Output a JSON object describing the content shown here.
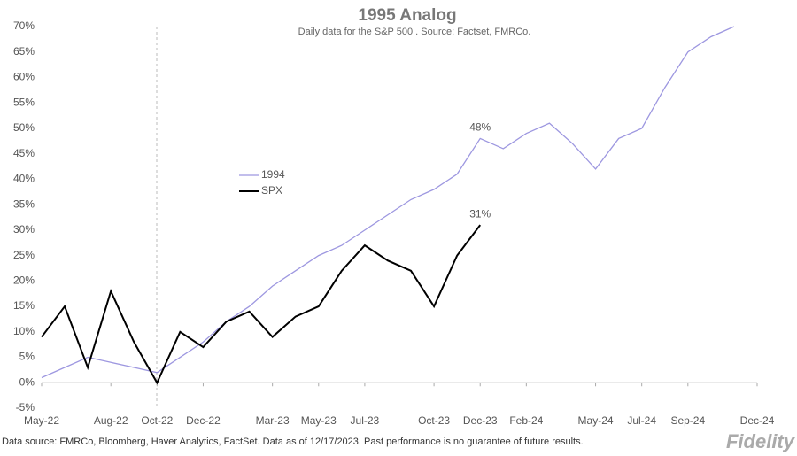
{
  "chart_data": {
    "type": "line",
    "title": "1995 Analog",
    "subtitle": "Daily data for the S&P 500 .  Source: Factset, FMRCo.",
    "footnote": "Data source: FMRCo, Bloomberg, Haver Analytics, FactSet. Data as of 12/17/2023. Past performance is no guarantee of future results.",
    "brand": "Fidelity",
    "x": [
      "2022-05",
      "2022-06",
      "2022-07",
      "2022-08",
      "2022-09",
      "2022-10",
      "2022-11",
      "2022-12",
      "2023-01",
      "2023-02",
      "2023-03",
      "2023-04",
      "2023-05",
      "2023-06",
      "2023-07",
      "2023-08",
      "2023-09",
      "2023-10",
      "2023-11",
      "2023-12",
      "2024-01",
      "2024-02",
      "2024-03",
      "2024-04",
      "2024-05",
      "2024-06",
      "2024-07",
      "2024-08",
      "2024-09",
      "2024-10",
      "2024-11"
    ],
    "series": [
      {
        "name": "1994",
        "color": "#9d97e0",
        "values": [
          1,
          3,
          5,
          4,
          3,
          2,
          5,
          8,
          12,
          15,
          19,
          22,
          25,
          27,
          30,
          33,
          36,
          38,
          41,
          48,
          46,
          49,
          51,
          47,
          42,
          48,
          50,
          58,
          65,
          68,
          70
        ],
        "value_labels": [
          null,
          null,
          null,
          null,
          null,
          null,
          null,
          null,
          null,
          null,
          null,
          null,
          null,
          null,
          null,
          null,
          null,
          null,
          null,
          "48%",
          null,
          null,
          null,
          null,
          null,
          null,
          null,
          null,
          null,
          null,
          null
        ]
      },
      {
        "name": "SPX",
        "color": "#000000",
        "values": [
          9,
          15,
          3,
          18,
          8,
          0,
          10,
          7,
          12,
          14,
          9,
          13,
          15,
          22,
          27,
          24,
          22,
          15,
          25,
          31,
          null,
          null,
          null,
          null,
          null,
          null,
          null,
          null,
          null,
          null,
          null
        ],
        "value_labels": [
          null,
          null,
          null,
          null,
          null,
          null,
          null,
          null,
          null,
          null,
          null,
          null,
          null,
          null,
          null,
          null,
          null,
          null,
          null,
          "31%",
          null,
          null,
          null,
          null,
          null,
          null,
          null,
          null,
          null,
          null,
          null
        ]
      }
    ],
    "xlim": [
      "2022-05",
      "2024-12"
    ],
    "xticks": [
      {
        "value": "2022-05",
        "label": "May-22"
      },
      {
        "value": "2022-08",
        "label": "Aug-22"
      },
      {
        "value": "2022-10",
        "label": "Oct-22"
      },
      {
        "value": "2022-12",
        "label": "Dec-22"
      },
      {
        "value": "2023-03",
        "label": "Mar-23"
      },
      {
        "value": "2023-05",
        "label": "May-23"
      },
      {
        "value": "2023-07",
        "label": "Jul-23"
      },
      {
        "value": "2023-10",
        "label": "Oct-23"
      },
      {
        "value": "2023-12",
        "label": "Dec-23"
      },
      {
        "value": "2024-02",
        "label": "Feb-24"
      },
      {
        "value": "2024-05",
        "label": "May-24"
      },
      {
        "value": "2024-07",
        "label": "Jul-24"
      },
      {
        "value": "2024-09",
        "label": "Sep-24"
      },
      {
        "value": "2024-12",
        "label": "Dec-24"
      }
    ],
    "ylim": [
      -5,
      70
    ],
    "yticks": [
      {
        "value": -5,
        "label": "-5%"
      },
      {
        "value": 0,
        "label": "0%"
      },
      {
        "value": 5,
        "label": "5%"
      },
      {
        "value": 10,
        "label": "10%"
      },
      {
        "value": 15,
        "label": "15%"
      },
      {
        "value": 20,
        "label": "20%"
      },
      {
        "value": 25,
        "label": "25%"
      },
      {
        "value": 30,
        "label": "30%"
      },
      {
        "value": 35,
        "label": "35%"
      },
      {
        "value": 40,
        "label": "40%"
      },
      {
        "value": 45,
        "label": "45%"
      },
      {
        "value": 50,
        "label": "50%"
      },
      {
        "value": 55,
        "label": "55%"
      },
      {
        "value": 60,
        "label": "60%"
      },
      {
        "value": 65,
        "label": "65%"
      },
      {
        "value": 70,
        "label": "70%"
      }
    ]
  }
}
